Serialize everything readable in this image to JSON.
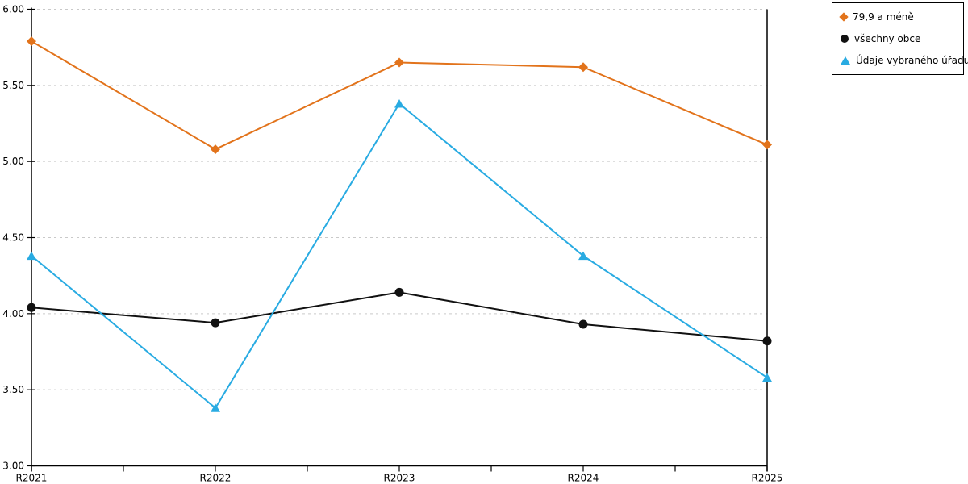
{
  "chart_data": {
    "type": "line",
    "categories": [
      "R2021",
      "R2022",
      "R2023",
      "R2024",
      "R2025"
    ],
    "series": [
      {
        "name": "79,9 a méně",
        "marker": "diamond",
        "color": "#E2731B",
        "values": [
          5.79,
          5.08,
          5.65,
          5.62,
          5.11
        ]
      },
      {
        "name": "všechny obce",
        "marker": "circle",
        "color": "#111111",
        "values": [
          4.04,
          3.94,
          4.14,
          3.93,
          3.82
        ]
      },
      {
        "name": "Údaje vybraného úřadu",
        "marker": "triangle",
        "color": "#29ABE2",
        "values": [
          4.38,
          3.38,
          5.38,
          4.38,
          3.58
        ]
      }
    ],
    "title": "",
    "xlabel": "",
    "ylabel": "",
    "ylim": [
      3.0,
      6.0
    ],
    "y_tick_step": 0.5,
    "y_tick_labels": [
      "6.00",
      "5.50",
      "5.00",
      "4.50",
      "4.00",
      "3.50",
      "3.00"
    ],
    "grid": "horizontal-dashed",
    "gridline_color": "#C9C9C9",
    "axis_color": "#000000",
    "legend_position": "top-right-outside",
    "legend_border_color": "#000000"
  }
}
